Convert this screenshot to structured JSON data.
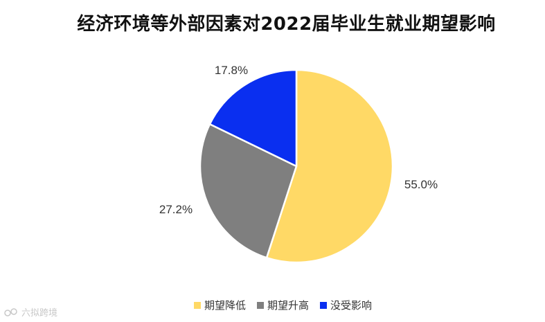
{
  "chart_data": {
    "type": "pie",
    "title": "经济环境等外部因素对2022届毕业生就业期望影响",
    "slices": [
      {
        "label": "期望降低",
        "value": 55.0,
        "value_label": "55.0%",
        "color": "#FFD966"
      },
      {
        "label": "期望升高",
        "value": 27.2,
        "value_label": "27.2%",
        "color": "#7F7F7F"
      },
      {
        "label": "没受影响",
        "value": 17.8,
        "value_label": "17.8%",
        "color": "#0A2FF0"
      }
    ],
    "legend_position": "bottom"
  },
  "watermark": {
    "text": "六拟跨境"
  }
}
